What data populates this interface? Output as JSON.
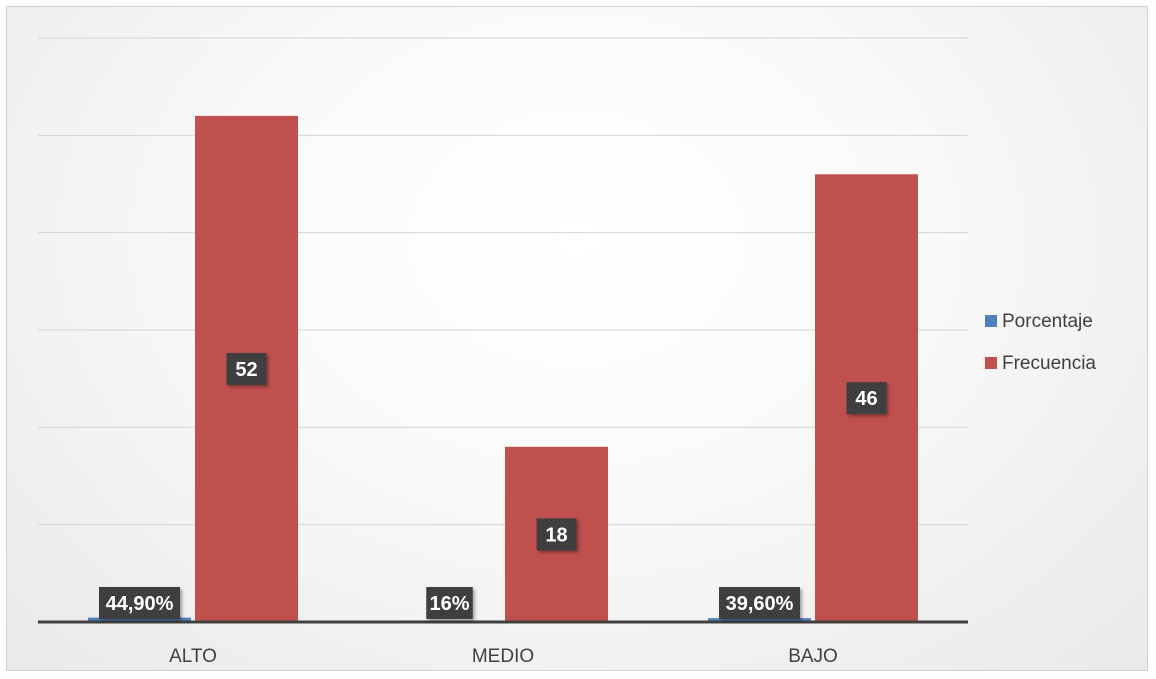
{
  "chart_data": {
    "type": "bar",
    "categories": [
      "ALTO",
      "MEDIO",
      "BAJO"
    ],
    "series": [
      {
        "name": "Porcentaje",
        "values": [
          0.449,
          0.16,
          0.396
        ],
        "labels": [
          "44,90%",
          "16%",
          "39,60%"
        ],
        "color": "#4f81bd"
      },
      {
        "name": "Frecuencia",
        "values": [
          52,
          18,
          46
        ],
        "labels": [
          "52",
          "18",
          "46"
        ],
        "color": "#c0504d"
      }
    ],
    "ylim": [
      0,
      60
    ],
    "grid": true,
    "legend": "right",
    "data_label_bg": "#3a3a3a",
    "data_label_color": "#ffffff"
  }
}
